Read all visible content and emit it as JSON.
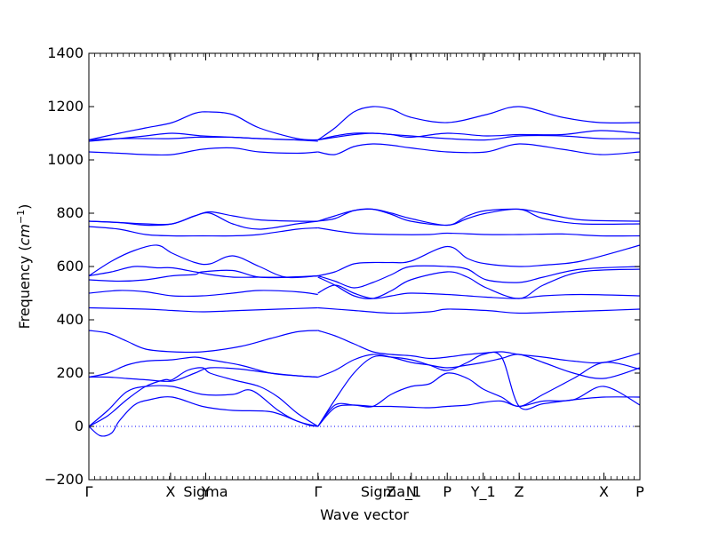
{
  "chart_data": {
    "type": "line",
    "xlabel": "Wave vector",
    "ylabel_text": "Frequency (",
    "ylabel_unit": "cm",
    "ylabel_exp": "−1",
    "ylabel_close": ")",
    "ylim": [
      -200,
      1400
    ],
    "xlim": [
      0,
      1
    ],
    "grid": false,
    "line_color": "#0000ff",
    "zero_line": {
      "y": 0,
      "style": "dotted",
      "color": "#0000ff"
    },
    "y_ticks": [
      -200,
      0,
      200,
      400,
      600,
      800,
      1000,
      1200,
      1400
    ],
    "high_symmetry_points": [
      {
        "label": "Γ",
        "pos": 0.0
      },
      {
        "label": "X",
        "pos": 0.2157
      },
      {
        "label": "Y|Sigma",
        "pos": 0.3087
      },
      {
        "label": "Γ",
        "pos": 0.6052
      },
      {
        "label": "Z|Sigma_1",
        "pos": 0.7982
      },
      {
        "label": "N",
        "pos": 0.8516
      },
      {
        "label": "P",
        "pos": 0.9466
      },
      {
        "label": "Y_1",
        "pos": 1.0416
      },
      {
        "label": "Z",
        "pos": 1.1366
      },
      {
        "label": "X",
        "pos": 1.3605
      },
      {
        "label": "P",
        "pos": 1.4555
      }
    ],
    "bands": [
      {
        "x": [
          0.0,
          0.03,
          0.06,
          0.08,
          0.12,
          0.16,
          0.22,
          0.3,
          0.38,
          0.48,
          0.55,
          0.58,
          0.605
        ],
        "y": [
          0,
          -35,
          -25,
          20,
          80,
          100,
          110,
          75,
          60,
          55,
          20,
          5,
          0
        ]
      },
      {
        "x": [
          0.0,
          0.05,
          0.1,
          0.15,
          0.22,
          0.3,
          0.38,
          0.43,
          0.5,
          0.55,
          0.605
        ],
        "y": [
          0,
          60,
          130,
          150,
          150,
          120,
          120,
          135,
          60,
          20,
          0
        ]
      },
      {
        "x": [
          0.0,
          0.05,
          0.1,
          0.15,
          0.2,
          0.22,
          0.26,
          0.3,
          0.32,
          0.38,
          0.45,
          0.5,
          0.55,
          0.605
        ],
        "y": [
          0,
          40,
          100,
          150,
          175,
          175,
          210,
          220,
          200,
          175,
          150,
          110,
          50,
          0
        ]
      },
      {
        "x": [
          0.0,
          0.05,
          0.1,
          0.15,
          0.22,
          0.28,
          0.32,
          0.4,
          0.48,
          0.55,
          0.605
        ],
        "y": [
          185,
          185,
          180,
          175,
          170,
          200,
          220,
          215,
          200,
          190,
          185
        ]
      },
      {
        "x": [
          0.0,
          0.05,
          0.1,
          0.15,
          0.22,
          0.28,
          0.32,
          0.4,
          0.48,
          0.55,
          0.605
        ],
        "y": [
          185,
          200,
          230,
          245,
          250,
          260,
          250,
          230,
          200,
          190,
          185
        ]
      },
      {
        "x": [
          0.0,
          0.05,
          0.1,
          0.15,
          0.22,
          0.3,
          0.4,
          0.48,
          0.55,
          0.605
        ],
        "y": [
          360,
          350,
          320,
          290,
          280,
          280,
          300,
          330,
          355,
          360
        ]
      },
      {
        "x": [
          0.0,
          0.15,
          0.22,
          0.3,
          0.4,
          0.5,
          0.605
        ],
        "y": [
          445,
          440,
          435,
          430,
          435,
          440,
          445
        ]
      },
      {
        "x": [
          0.0,
          0.08,
          0.15,
          0.22,
          0.3,
          0.38,
          0.45,
          0.55,
          0.605
        ],
        "y": [
          500,
          510,
          505,
          490,
          490,
          500,
          510,
          505,
          495
        ]
      },
      {
        "x": [
          0.0,
          0.08,
          0.15,
          0.22,
          0.28,
          0.3,
          0.38,
          0.45,
          0.55,
          0.605
        ],
        "y": [
          550,
          545,
          550,
          565,
          570,
          580,
          585,
          560,
          560,
          565
        ]
      },
      {
        "x": [
          0.0,
          0.06,
          0.12,
          0.18,
          0.22,
          0.28,
          0.32,
          0.38,
          0.45,
          0.52,
          0.605
        ],
        "y": [
          565,
          580,
          600,
          595,
          595,
          580,
          570,
          560,
          560,
          560,
          565
        ]
      },
      {
        "x": [
          0.0,
          0.06,
          0.12,
          0.18,
          0.22,
          0.28,
          0.32,
          0.38,
          0.45,
          0.52,
          0.605
        ],
        "y": [
          565,
          620,
          660,
          680,
          650,
          615,
          610,
          640,
          600,
          560,
          565
        ]
      },
      {
        "x": [
          0.0,
          0.08,
          0.15,
          0.22,
          0.3,
          0.38,
          0.45,
          0.55,
          0.605
        ],
        "y": [
          750,
          740,
          720,
          715,
          715,
          715,
          720,
          740,
          745
        ]
      },
      {
        "x": [
          0.0,
          0.08,
          0.15,
          0.22,
          0.28,
          0.32,
          0.38,
          0.45,
          0.55,
          0.605
        ],
        "y": [
          770,
          765,
          755,
          760,
          790,
          800,
          760,
          740,
          760,
          770
        ]
      },
      {
        "x": [
          0.0,
          0.08,
          0.15,
          0.22,
          0.28,
          0.32,
          0.38,
          0.45,
          0.55,
          0.605
        ],
        "y": [
          770,
          765,
          760,
          760,
          790,
          805,
          790,
          775,
          770,
          770
        ]
      },
      {
        "x": [
          0.0,
          0.08,
          0.15,
          0.22,
          0.3,
          0.38,
          0.45,
          0.55,
          0.605
        ],
        "y": [
          1030,
          1025,
          1020,
          1020,
          1040,
          1045,
          1030,
          1025,
          1030
        ]
      },
      {
        "x": [
          0.0,
          0.08,
          0.15,
          0.22,
          0.3,
          0.38,
          0.45,
          0.55,
          0.605
        ],
        "y": [
          1070,
          1080,
          1090,
          1100,
          1090,
          1085,
          1080,
          1075,
          1070
        ]
      },
      {
        "x": [
          0.0,
          0.08,
          0.15,
          0.22,
          0.28,
          0.32,
          0.38,
          0.45,
          0.55,
          0.605
        ],
        "y": [
          1075,
          1080,
          1080,
          1080,
          1085,
          1085,
          1085,
          1080,
          1075,
          1075
        ]
      },
      {
        "x": [
          0.0,
          0.08,
          0.15,
          0.22,
          0.28,
          0.32,
          0.38,
          0.45,
          0.55,
          0.605
        ],
        "y": [
          1075,
          1100,
          1120,
          1140,
          1175,
          1180,
          1170,
          1120,
          1080,
          1075
        ]
      },
      {
        "x": [
          0.605,
          0.65,
          0.7,
          0.75,
          0.7982,
          0.8516,
          0.9,
          0.9466,
          1.0,
          1.0416,
          1.09,
          1.1366,
          1.2,
          1.28,
          1.3605,
          1.4555
        ],
        "y": [
          0,
          70,
          80,
          75,
          75,
          72,
          70,
          75,
          80,
          90,
          95,
          75,
          95,
          100,
          150,
          80
        ]
      },
      {
        "x": [
          0.605,
          0.65,
          0.7,
          0.75,
          0.7982,
          0.8516,
          0.9,
          0.9466,
          1.0,
          1.0416,
          1.09,
          1.1366,
          1.2,
          1.28,
          1.3605,
          1.4555
        ],
        "y": [
          0,
          100,
          200,
          260,
          260,
          250,
          230,
          210,
          240,
          270,
          260,
          75,
          85,
          100,
          110,
          110
        ]
      },
      {
        "x": [
          0.605,
          0.65,
          0.7,
          0.75,
          0.7982,
          0.8516,
          0.9,
          0.9466,
          1.0,
          1.0416,
          1.09,
          1.1366,
          1.2,
          1.28,
          1.3605,
          1.4555
        ],
        "y": [
          0,
          80,
          80,
          75,
          120,
          150,
          160,
          200,
          180,
          140,
          110,
          75,
          120,
          180,
          240,
          215
        ]
      },
      {
        "x": [
          0.605,
          0.65,
          0.7,
          0.75,
          0.7982,
          0.8516,
          0.9,
          0.9466,
          1.0,
          1.0416,
          1.09,
          1.1366,
          1.2,
          1.28,
          1.3605,
          1.4555
        ],
        "y": [
          185,
          210,
          250,
          270,
          260,
          240,
          230,
          220,
          230,
          240,
          255,
          270,
          240,
          200,
          180,
          220
        ]
      },
      {
        "x": [
          0.605,
          0.65,
          0.7,
          0.75,
          0.7982,
          0.8516,
          0.9,
          0.9466,
          1.0,
          1.0416,
          1.09,
          1.1366,
          1.2,
          1.28,
          1.3605,
          1.4555
        ],
        "y": [
          360,
          340,
          310,
          280,
          270,
          265,
          255,
          260,
          270,
          275,
          280,
          270,
          260,
          245,
          240,
          275
        ]
      },
      {
        "x": [
          0.605,
          0.7,
          0.8,
          0.9,
          0.9466,
          1.05,
          1.1366,
          1.25,
          1.3605,
          1.4555
        ],
        "y": [
          445,
          435,
          425,
          430,
          440,
          435,
          425,
          430,
          435,
          440
        ]
      },
      {
        "x": [
          0.605,
          0.65,
          0.7,
          0.75,
          0.8,
          0.85,
          0.9466,
          1.0,
          1.05,
          1.1366,
          1.2,
          1.3,
          1.4555
        ],
        "y": [
          500,
          530,
          500,
          480,
          490,
          500,
          495,
          490,
          485,
          480,
          490,
          495,
          490
        ]
      },
      {
        "x": [
          0.605,
          0.65,
          0.7,
          0.75,
          0.8,
          0.85,
          0.9466,
          1.0,
          1.05,
          1.1366,
          1.2,
          1.3,
          1.4555
        ],
        "y": [
          560,
          530,
          490,
          480,
          510,
          550,
          580,
          560,
          520,
          480,
          530,
          580,
          590
        ]
      },
      {
        "x": [
          0.605,
          0.65,
          0.7,
          0.75,
          0.8,
          0.85,
          0.9466,
          1.0,
          1.05,
          1.1366,
          1.2,
          1.3,
          1.4555
        ],
        "y": [
          565,
          545,
          520,
          540,
          570,
          600,
          600,
          590,
          550,
          540,
          560,
          590,
          600
        ]
      },
      {
        "x": [
          0.605,
          0.65,
          0.7,
          0.75,
          0.8,
          0.85,
          0.9466,
          1.0,
          1.05,
          1.1366,
          1.2,
          1.3,
          1.4555
        ],
        "y": [
          565,
          580,
          610,
          615,
          615,
          620,
          675,
          630,
          610,
          600,
          605,
          620,
          680
        ]
      },
      {
        "x": [
          0.605,
          0.7,
          0.8,
          0.9,
          0.9466,
          1.05,
          1.1366,
          1.25,
          1.35,
          1.4555
        ],
        "y": [
          745,
          725,
          720,
          720,
          725,
          720,
          720,
          722,
          715,
          715
        ]
      },
      {
        "x": [
          0.605,
          0.65,
          0.7,
          0.75,
          0.8,
          0.85,
          0.9466,
          1.0,
          1.05,
          1.1366,
          1.2,
          1.3,
          1.4555
        ],
        "y": [
          770,
          780,
          810,
          815,
          795,
          770,
          755,
          780,
          800,
          815,
          780,
          760,
          760
        ]
      },
      {
        "x": [
          0.605,
          0.65,
          0.7,
          0.75,
          0.8,
          0.85,
          0.9466,
          1.0,
          1.05,
          1.1366,
          1.2,
          1.3,
          1.4555
        ],
        "y": [
          770,
          790,
          810,
          815,
          800,
          780,
          755,
          790,
          810,
          815,
          800,
          775,
          770
        ]
      },
      {
        "x": [
          0.605,
          0.65,
          0.7,
          0.75,
          0.8,
          0.85,
          0.9466,
          1.05,
          1.1366,
          1.25,
          1.35,
          1.4555
        ],
        "y": [
          1030,
          1020,
          1050,
          1060,
          1055,
          1045,
          1030,
          1030,
          1060,
          1040,
          1020,
          1030
        ]
      },
      {
        "x": [
          0.605,
          0.65,
          0.7,
          0.75,
          0.8,
          0.85,
          0.9466,
          1.05,
          1.1366,
          1.25,
          1.35,
          1.4555
        ],
        "y": [
          1075,
          1090,
          1100,
          1100,
          1095,
          1085,
          1100,
          1090,
          1095,
          1095,
          1110,
          1100
        ]
      },
      {
        "x": [
          0.605,
          0.65,
          0.7,
          0.75,
          0.8,
          0.85,
          0.9466,
          1.05,
          1.1366,
          1.25,
          1.35,
          1.4555
        ],
        "y": [
          1075,
          1085,
          1095,
          1100,
          1095,
          1090,
          1080,
          1075,
          1090,
          1090,
          1080,
          1080
        ]
      },
      {
        "x": [
          0.605,
          0.65,
          0.7,
          0.75,
          0.8,
          0.85,
          0.9466,
          1.05,
          1.1366,
          1.25,
          1.35,
          1.4555
        ],
        "y": [
          1075,
          1120,
          1180,
          1200,
          1190,
          1160,
          1140,
          1170,
          1200,
          1160,
          1140,
          1140
        ]
      }
    ]
  }
}
